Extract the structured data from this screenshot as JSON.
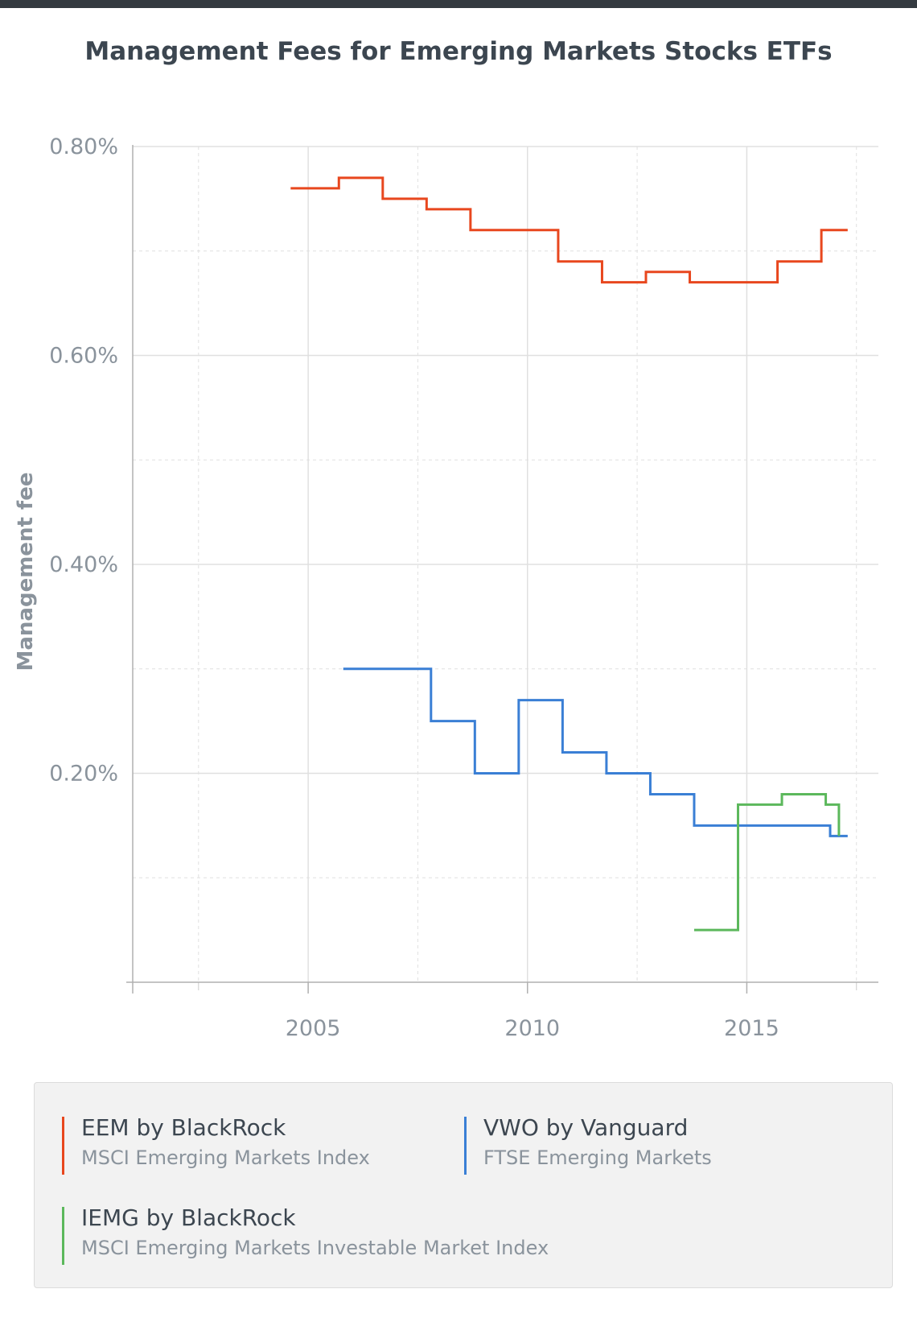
{
  "colors": {
    "eem": "#e8471e",
    "vwo": "#3a7fd5",
    "iemg": "#5cb85c",
    "axis_text": "#8a939c",
    "grid": "#e0e0e0"
  },
  "chart_data": {
    "type": "line",
    "step": true,
    "title": "Management Fees for Emerging Markets Stocks ETFs",
    "ylabel": "Management fee",
    "xlabel": "",
    "xlim": [
      2001,
      2018
    ],
    "ylim": [
      0.0,
      0.8
    ],
    "x_ticks": [
      2005,
      2010,
      2015
    ],
    "x_tick_labels": [
      "2005",
      "2010",
      "2015"
    ],
    "y_ticks": [
      0.2,
      0.4,
      0.6,
      0.8
    ],
    "y_tick_labels": [
      "0.20%",
      "0.40%",
      "0.60%",
      "0.80%"
    ],
    "grid": true,
    "legend_position": "bottom",
    "series": [
      {
        "key": "eem",
        "name": "EEM by BlackRock",
        "subtitle": "MSCI Emerging Markets Index",
        "x": [
          2004.6,
          2005.7,
          2006.7,
          2007.7,
          2008.7,
          2010.7,
          2011.7,
          2012.7,
          2013.7,
          2015.7,
          2016.7,
          2017.3
        ],
        "y": [
          0.76,
          0.77,
          0.75,
          0.74,
          0.72,
          0.69,
          0.67,
          0.68,
          0.67,
          0.69,
          0.72,
          0.72
        ]
      },
      {
        "key": "vwo",
        "name": "VWO by Vanguard",
        "subtitle": "FTSE Emerging Markets",
        "x": [
          2005.8,
          2007.8,
          2008.8,
          2009.8,
          2010.8,
          2011.8,
          2012.8,
          2013.8,
          2016.9,
          2017.3
        ],
        "y": [
          0.3,
          0.25,
          0.2,
          0.27,
          0.22,
          0.2,
          0.18,
          0.15,
          0.14,
          0.14
        ]
      },
      {
        "key": "iemg",
        "name": "IEMG by BlackRock",
        "subtitle": "MSCI Emerging Markets Investable Market Index",
        "x": [
          2013.8,
          2014.8,
          2015.8,
          2016.8,
          2017.1
        ],
        "y": [
          0.05,
          0.17,
          0.18,
          0.17,
          0.14
        ]
      }
    ]
  }
}
